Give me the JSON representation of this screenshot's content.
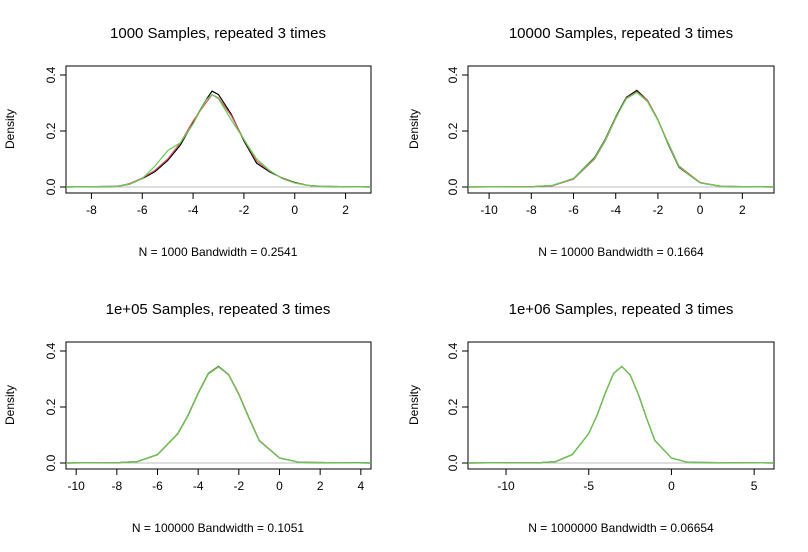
{
  "chart_data": [
    {
      "type": "line",
      "title": "1000 Samples, repeated 3 times",
      "xlabel": "N = 1000   Bandwidth = 0.2541",
      "ylabel": "Density",
      "xlim": [
        -9.0,
        3.0
      ],
      "ylim": [
        0,
        0.4
      ],
      "x_ticks": [
        -8,
        -6,
        -4,
        -2,
        0,
        2
      ],
      "x_tick_labels": [
        "-8",
        "-6",
        "-4",
        "-2",
        "0",
        "2"
      ],
      "y_ticks": [
        0.0,
        0.2,
        0.4
      ],
      "y_tick_labels": [
        "0.0",
        "0.2",
        "0.4"
      ],
      "x": [
        -9.0,
        -7.0,
        -6.5,
        -6.0,
        -5.5,
        -5.0,
        -4.5,
        -4.0,
        -3.5,
        -3.25,
        -3.0,
        -2.5,
        -2.0,
        -1.5,
        -1.0,
        -0.5,
        0.0,
        0.5,
        1.0,
        3.0
      ],
      "series": [
        {
          "color": "#000000",
          "values": [
            0.0,
            0.002,
            0.01,
            0.03,
            0.055,
            0.095,
            0.15,
            0.23,
            0.31,
            0.342,
            0.33,
            0.26,
            0.165,
            0.085,
            0.055,
            0.032,
            0.016,
            0.006,
            0.002,
            0.0
          ]
        },
        {
          "color": "#df536b",
          "values": [
            0.0,
            0.002,
            0.012,
            0.032,
            0.06,
            0.1,
            0.158,
            0.236,
            0.3,
            0.33,
            0.318,
            0.255,
            0.17,
            0.092,
            0.058,
            0.032,
            0.015,
            0.006,
            0.002,
            0.0
          ]
        },
        {
          "color": "#61d04f",
          "values": [
            0.0,
            0.002,
            0.01,
            0.03,
            0.075,
            0.13,
            0.158,
            0.225,
            0.31,
            0.33,
            0.315,
            0.24,
            0.17,
            0.1,
            0.06,
            0.03,
            0.014,
            0.006,
            0.002,
            0.0
          ]
        }
      ]
    },
    {
      "type": "line",
      "title": "10000 Samples, repeated 3 times",
      "xlabel": "N = 10000   Bandwidth = 0.1664",
      "ylabel": "Density",
      "xlim": [
        -11.0,
        3.5
      ],
      "ylim": [
        0,
        0.4
      ],
      "x_ticks": [
        -10,
        -8,
        -6,
        -4,
        -2,
        0,
        2
      ],
      "x_tick_labels": [
        "-10",
        "-8",
        "-6",
        "-4",
        "-2",
        "0",
        "2"
      ],
      "y_ticks": [
        0.0,
        0.2,
        0.4
      ],
      "y_tick_labels": [
        "0.0",
        "0.2",
        "0.4"
      ],
      "x": [
        -11.0,
        -8.0,
        -7.0,
        -6.0,
        -5.0,
        -4.5,
        -4.0,
        -3.5,
        -3.0,
        -2.5,
        -2.0,
        -1.5,
        -1.0,
        0.0,
        1.0,
        3.5
      ],
      "series": [
        {
          "color": "#000000",
          "values": [
            0.0,
            0.001,
            0.005,
            0.03,
            0.105,
            0.17,
            0.25,
            0.32,
            0.345,
            0.31,
            0.24,
            0.15,
            0.07,
            0.015,
            0.002,
            0.0
          ]
        },
        {
          "color": "#df536b",
          "values": [
            0.0,
            0.001,
            0.005,
            0.028,
            0.1,
            0.165,
            0.245,
            0.318,
            0.34,
            0.31,
            0.24,
            0.155,
            0.075,
            0.016,
            0.002,
            0.0
          ]
        },
        {
          "color": "#61d04f",
          "values": [
            0.0,
            0.001,
            0.006,
            0.03,
            0.103,
            0.168,
            0.248,
            0.315,
            0.338,
            0.305,
            0.238,
            0.152,
            0.072,
            0.015,
            0.002,
            0.0
          ]
        }
      ]
    },
    {
      "type": "line",
      "title": "1e+05 Samples, repeated 3 times",
      "xlabel": "N = 100000   Bandwidth = 0.1051",
      "ylabel": "Density",
      "xlim": [
        -10.5,
        4.5
      ],
      "ylim": [
        0,
        0.4
      ],
      "x_ticks": [
        -10,
        -8,
        -6,
        -4,
        -2,
        0,
        2,
        4
      ],
      "x_tick_labels": [
        "-10",
        "-8",
        "-6",
        "-4",
        "-2",
        "0",
        "2",
        "4"
      ],
      "y_ticks": [
        0.0,
        0.2,
        0.4
      ],
      "y_tick_labels": [
        "0.0",
        "0.2",
        "0.4"
      ],
      "x": [
        -10.5,
        -8.0,
        -7.0,
        -6.0,
        -5.0,
        -4.5,
        -4.0,
        -3.5,
        -3.0,
        -2.5,
        -2.0,
        -1.5,
        -1.0,
        0.0,
        1.0,
        4.5
      ],
      "series": [
        {
          "color": "#000000",
          "values": [
            0.0,
            0.001,
            0.005,
            0.03,
            0.105,
            0.17,
            0.25,
            0.32,
            0.345,
            0.315,
            0.245,
            0.16,
            0.08,
            0.018,
            0.002,
            0.0
          ]
        },
        {
          "color": "#df536b",
          "values": [
            0.0,
            0.001,
            0.005,
            0.029,
            0.104,
            0.168,
            0.248,
            0.318,
            0.343,
            0.316,
            0.247,
            0.162,
            0.081,
            0.018,
            0.002,
            0.0
          ]
        },
        {
          "color": "#61d04f",
          "values": [
            0.0,
            0.001,
            0.005,
            0.03,
            0.105,
            0.169,
            0.249,
            0.319,
            0.344,
            0.314,
            0.244,
            0.159,
            0.079,
            0.017,
            0.002,
            0.0
          ]
        }
      ]
    },
    {
      "type": "line",
      "title": "1e+06 Samples, repeated 3 times",
      "xlabel": "N = 1000000   Bandwidth = 0.06654",
      "ylabel": "Density",
      "xlim": [
        -12.3,
        6.2
      ],
      "ylim": [
        0,
        0.4
      ],
      "x_ticks": [
        -10,
        -5,
        0,
        5
      ],
      "x_tick_labels": [
        "-10",
        "-5",
        "0",
        "5"
      ],
      "y_ticks": [
        0.0,
        0.2,
        0.4
      ],
      "y_tick_labels": [
        "0.0",
        "0.2",
        "0.4"
      ],
      "x": [
        -12.3,
        -8.0,
        -7.0,
        -6.0,
        -5.0,
        -4.5,
        -4.0,
        -3.5,
        -3.0,
        -2.5,
        -2.0,
        -1.5,
        -1.0,
        0.0,
        1.0,
        6.2
      ],
      "series": [
        {
          "color": "#000000",
          "values": [
            0.0,
            0.001,
            0.005,
            0.03,
            0.105,
            0.17,
            0.25,
            0.32,
            0.345,
            0.315,
            0.245,
            0.16,
            0.08,
            0.018,
            0.002,
            0.0
          ]
        },
        {
          "color": "#df536b",
          "values": [
            0.0,
            0.001,
            0.005,
            0.03,
            0.105,
            0.17,
            0.25,
            0.32,
            0.345,
            0.315,
            0.245,
            0.16,
            0.08,
            0.018,
            0.002,
            0.0
          ]
        },
        {
          "color": "#61d04f",
          "values": [
            0.0,
            0.001,
            0.005,
            0.03,
            0.105,
            0.17,
            0.25,
            0.32,
            0.345,
            0.315,
            0.245,
            0.16,
            0.08,
            0.018,
            0.002,
            0.0
          ]
        }
      ]
    }
  ]
}
